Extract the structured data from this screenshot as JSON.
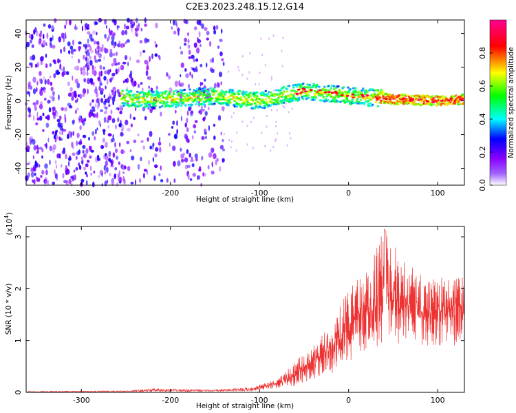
{
  "title": "C2E3.2023.248.15.12.G14",
  "chart_data": [
    {
      "type": "heatmap",
      "xlabel": "Height of straight line (km)",
      "ylabel": "Frequency (Hz)",
      "xlim": [
        -362,
        130
      ],
      "ylim": [
        -50,
        48
      ],
      "xticks": [
        -300,
        -200,
        -100,
        0,
        100
      ],
      "yticks": [
        -40,
        -20,
        0,
        20,
        40
      ],
      "colorbar": {
        "label": "Normalized spectral amplitude",
        "range": [
          0,
          1
        ],
        "ticks": [
          "0.0",
          "0.2",
          "0.4",
          "0.6",
          "0.8"
        ],
        "colors": [
          "#ffffff",
          "#8b00ff",
          "#0000ff",
          "#00ffff",
          "#00ff00",
          "#ffff00",
          "#ff0000",
          "#ff0090"
        ]
      },
      "ridge": [
        {
          "x": -250,
          "y": 2
        },
        {
          "x": -240,
          "y": 1
        },
        {
          "x": -200,
          "y": 1
        },
        {
          "x": -150,
          "y": 3
        },
        {
          "x": -100,
          "y": 0
        },
        {
          "x": -50,
          "y": 6
        },
        {
          "x": 0,
          "y": 3
        },
        {
          "x": 50,
          "y": 1
        },
        {
          "x": 100,
          "y": 0
        },
        {
          "x": 130,
          "y": 1
        }
      ]
    },
    {
      "type": "line",
      "xlabel": "Height of straight line (km)",
      "ylabel": "SNR (10 * v/v)",
      "yunit": "(x10",
      "yunit_exp": "4",
      "yunit_close": ")",
      "xlim": [
        -362,
        130
      ],
      "ylim": [
        0,
        3.2
      ],
      "xticks": [
        -300,
        -200,
        -100,
        0,
        100
      ],
      "yticks": [
        0,
        1,
        2,
        3
      ],
      "color": "#ee3333",
      "envelope": [
        {
          "x": -362,
          "y": 0.02
        },
        {
          "x": -250,
          "y": 0.03
        },
        {
          "x": -220,
          "y": 0.07
        },
        {
          "x": -150,
          "y": 0.05
        },
        {
          "x": -110,
          "y": 0.1
        },
        {
          "x": -80,
          "y": 0.25
        },
        {
          "x": -60,
          "y": 0.6
        },
        {
          "x": -40,
          "y": 0.9
        },
        {
          "x": -20,
          "y": 1.3
        },
        {
          "x": 0,
          "y": 2.0
        },
        {
          "x": 20,
          "y": 2.4
        },
        {
          "x": 40,
          "y": 3.15
        },
        {
          "x": 60,
          "y": 2.6
        },
        {
          "x": 80,
          "y": 2.3
        },
        {
          "x": 100,
          "y": 2.2
        },
        {
          "x": 130,
          "y": 2.3
        }
      ],
      "baseline": [
        {
          "x": -362,
          "y": 0.0
        },
        {
          "x": -110,
          "y": 0.02
        },
        {
          "x": -60,
          "y": 0.12
        },
        {
          "x": -20,
          "y": 0.35
        },
        {
          "x": 0,
          "y": 0.6
        },
        {
          "x": 40,
          "y": 0.9
        },
        {
          "x": 130,
          "y": 0.9
        }
      ]
    }
  ]
}
